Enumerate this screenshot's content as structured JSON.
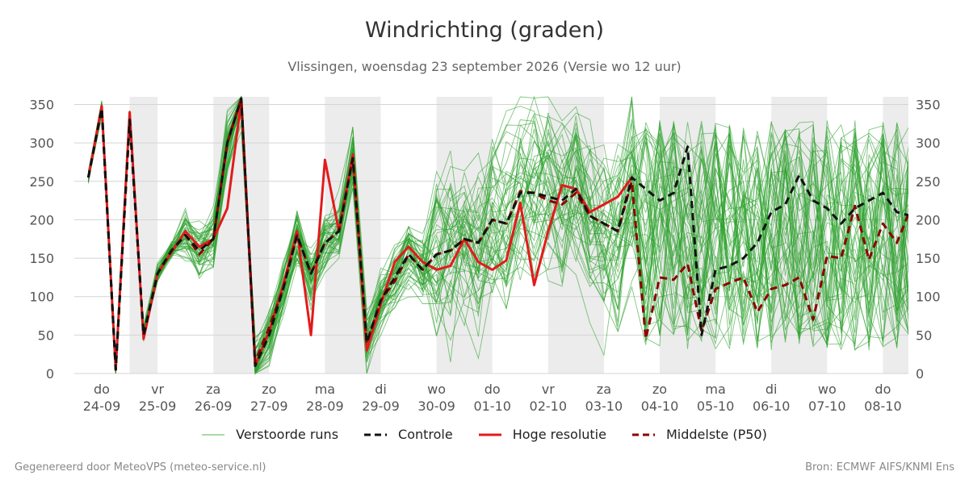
{
  "header": {
    "title": "Windrichting (graden)",
    "subtitle": "Vlissingen, woensdag 23 september 2026 (Versie wo 12 uur)"
  },
  "footer": {
    "left": "Gegenereerd door MeteoVPS (meteo-service.nl)",
    "right": "Bron: ECMWF AIFS/KNMI Ens"
  },
  "legend": {
    "items": [
      {
        "label": "Verstoorde runs",
        "color": "#2ca02c",
        "style": "thin-solid"
      },
      {
        "label": "Controle",
        "color": "#111111",
        "style": "dashed"
      },
      {
        "label": "Hoge resolutie",
        "color": "#e31a1c",
        "style": "solid"
      },
      {
        "label": "Middelste (P50)",
        "color": "#8b0000",
        "style": "dashed"
      }
    ]
  },
  "chart_data": {
    "type": "line",
    "x_unit": "day",
    "xlim": [
      -0.24,
      15.0
    ],
    "ylim": [
      0,
      360
    ],
    "y_ticks": [
      0,
      50,
      100,
      150,
      200,
      250,
      300,
      350
    ],
    "y_axis_both_sides": true,
    "grid": "horizontal",
    "x_ticks": [
      {
        "x": 0.0,
        "day": "do",
        "date": "24-09"
      },
      {
        "x": 1.0,
        "day": "vr",
        "date": "25-09"
      },
      {
        "x": 2.0,
        "day": "za",
        "date": "26-09"
      },
      {
        "x": 3.0,
        "day": "zo",
        "date": "27-09"
      },
      {
        "x": 4.0,
        "day": "ma",
        "date": "28-09"
      },
      {
        "x": 5.0,
        "day": "di",
        "date": "29-09"
      },
      {
        "x": 6.0,
        "day": "wo",
        "date": "30-09"
      },
      {
        "x": 7.0,
        "day": "do",
        "date": "01-10"
      },
      {
        "x": 8.0,
        "day": "vr",
        "date": "02-10"
      },
      {
        "x": 9.0,
        "day": "za",
        "date": "03-10"
      },
      {
        "x": 10.0,
        "day": "zo",
        "date": "04-10"
      },
      {
        "x": 11.0,
        "day": "ma",
        "date": "05-10"
      },
      {
        "x": 12.0,
        "day": "di",
        "date": "06-10"
      },
      {
        "x": 13.0,
        "day": "wo",
        "date": "07-10"
      },
      {
        "x": 14.0,
        "day": "do",
        "date": "08-10"
      }
    ],
    "shaded_bands": [
      [
        0.5,
        1.0
      ],
      [
        2.0,
        3.0
      ],
      [
        4.0,
        5.0
      ],
      [
        6.0,
        7.0
      ],
      [
        8.0,
        9.0
      ],
      [
        10.0,
        11.0
      ],
      [
        12.0,
        13.0
      ],
      [
        14.0,
        15.0
      ]
    ],
    "series": [
      {
        "name": "Controle",
        "color": "#111111",
        "style": "dashed",
        "x": [
          -0.24,
          0.0,
          0.25,
          0.5,
          0.75,
          1.0,
          1.25,
          1.5,
          1.75,
          2.0,
          2.25,
          2.5,
          2.75,
          3.0,
          3.25,
          3.5,
          3.75,
          4.0,
          4.25,
          4.5,
          4.75,
          5.0,
          5.25,
          5.5,
          5.75,
          6.0,
          6.25,
          6.5,
          6.75,
          7.0,
          7.25,
          7.5,
          7.75,
          8.0,
          8.25,
          8.5,
          8.75,
          9.0,
          9.25,
          9.5,
          9.75,
          10.0,
          10.25,
          10.5,
          10.75,
          11.0,
          11.25,
          11.5,
          11.75,
          12.0,
          12.25,
          12.5,
          12.75,
          13.0,
          13.25,
          13.5,
          13.75,
          14.0,
          14.25,
          14.5
        ],
        "values": [
          255,
          345,
          5,
          330,
          50,
          130,
          160,
          180,
          160,
          175,
          300,
          358,
          10,
          50,
          110,
          180,
          130,
          170,
          185,
          280,
          40,
          95,
          125,
          155,
          135,
          155,
          160,
          175,
          170,
          200,
          195,
          235,
          235,
          230,
          225,
          240,
          205,
          195,
          185,
          255,
          240,
          225,
          235,
          295,
          50,
          135,
          140,
          150,
          170,
          210,
          220,
          258,
          225,
          215,
          195,
          215,
          225,
          235,
          210,
          205
        ]
      },
      {
        "name": "Middelste (P50)",
        "color": "#8b0000",
        "style": "dashed",
        "x": [
          -0.24,
          0.0,
          0.25,
          0.5,
          0.75,
          1.0,
          1.25,
          1.5,
          1.75,
          2.0,
          2.25,
          2.5,
          2.75,
          3.0,
          3.25,
          3.5,
          3.75,
          4.0,
          4.25,
          4.5,
          4.75,
          5.0,
          5.25,
          5.5,
          5.75,
          6.0,
          6.25,
          6.5,
          6.75,
          7.0,
          7.25,
          7.5,
          7.75,
          8.0,
          8.25,
          8.5,
          8.75,
          9.0,
          9.25,
          9.5,
          9.75,
          10.0,
          10.25,
          10.5,
          10.75,
          11.0,
          11.25,
          11.5,
          11.75,
          12.0,
          12.25,
          12.5,
          12.75,
          13.0,
          13.25,
          13.5,
          13.75,
          14.0,
          14.25,
          14.5
        ],
        "values": [
          255,
          345,
          5,
          330,
          50,
          130,
          160,
          180,
          155,
          175,
          300,
          358,
          15,
          60,
          110,
          180,
          130,
          170,
          185,
          280,
          40,
          95,
          120,
          155,
          135,
          155,
          160,
          175,
          170,
          200,
          195,
          237,
          235,
          225,
          220,
          235,
          205,
          195,
          185,
          250,
          45,
          125,
          122,
          143,
          55,
          110,
          118,
          125,
          80,
          110,
          115,
          125,
          70,
          153,
          150,
          218,
          148,
          195,
          170,
          215
        ]
      },
      {
        "name": "Hoge resolutie",
        "color": "#e31a1c",
        "style": "solid",
        "x": [
          -0.24,
          0.0,
          0.25,
          0.5,
          0.75,
          1.0,
          1.25,
          1.5,
          1.75,
          2.0,
          2.25,
          2.5,
          2.75,
          3.0,
          3.25,
          3.5,
          3.75,
          4.0,
          4.25,
          4.5,
          4.75,
          5.0,
          5.25,
          5.5,
          5.75,
          6.0,
          6.25,
          6.5,
          6.75,
          7.0,
          7.25,
          7.5,
          7.75,
          8.0,
          8.25,
          8.5,
          8.75,
          9.0,
          9.25,
          9.5
        ],
        "values": [
          255,
          348,
          5,
          340,
          45,
          130,
          158,
          185,
          165,
          175,
          215,
          355,
          10,
          55,
          115,
          185,
          50,
          278,
          185,
          285,
          30,
          90,
          145,
          165,
          145,
          135,
          140,
          175,
          145,
          135,
          147,
          222,
          115,
          185,
          245,
          240,
          210,
          220,
          230,
          255
        ]
      }
    ]
  }
}
